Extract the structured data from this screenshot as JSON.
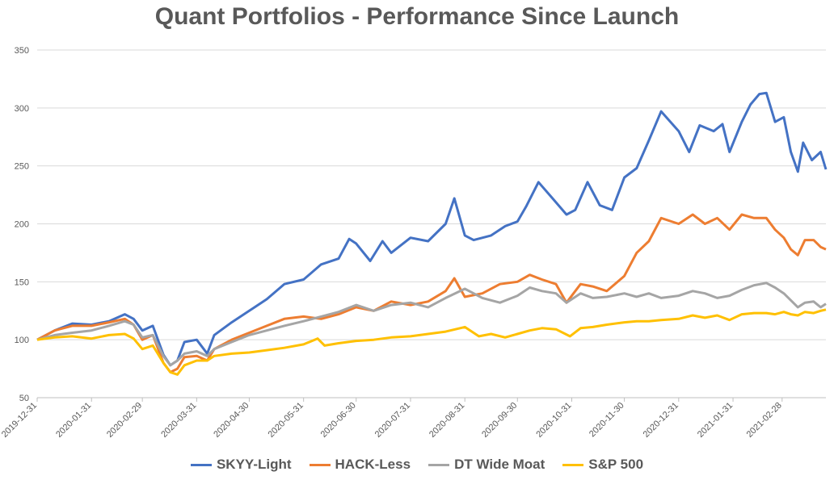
{
  "chart_data": {
    "type": "line",
    "title": "Quant Portfolios - Performance Since Launch",
    "ylim": [
      50,
      350
    ],
    "yticks": [
      50,
      100,
      150,
      200,
      250,
      300,
      350
    ],
    "grid": true,
    "legend_position": "bottom",
    "x_tick_labels": [
      "2019-12-31",
      "2020-01-31",
      "2020-02-29",
      "2020-03-31",
      "2020-04-30",
      "2020-05-31",
      "2020-06-30",
      "2020-07-31",
      "2020-08-31",
      "2020-09-30",
      "2020-10-31",
      "2020-11-30",
      "2020-12-31",
      "2021-01-31",
      "2021-02-28"
    ],
    "x_range": [
      "2019-12-31",
      "2021-03-25"
    ],
    "series": [
      {
        "name": "SKYY-Light",
        "color": "#4472c4",
        "points": [
          [
            "2019-12-31",
            100
          ],
          [
            "2020-01-10",
            108
          ],
          [
            "2020-01-20",
            114
          ],
          [
            "2020-01-31",
            113
          ],
          [
            "2020-02-10",
            116
          ],
          [
            "2020-02-19",
            122
          ],
          [
            "2020-02-24",
            118
          ],
          [
            "2020-02-29",
            108
          ],
          [
            "2020-03-06",
            112
          ],
          [
            "2020-03-12",
            87
          ],
          [
            "2020-03-16",
            78
          ],
          [
            "2020-03-20",
            82
          ],
          [
            "2020-03-24",
            98
          ],
          [
            "2020-03-31",
            100
          ],
          [
            "2020-04-06",
            88
          ],
          [
            "2020-04-10",
            104
          ],
          [
            "2020-04-20",
            115
          ],
          [
            "2020-04-30",
            125
          ],
          [
            "2020-05-10",
            135
          ],
          [
            "2020-05-20",
            148
          ],
          [
            "2020-05-31",
            152
          ],
          [
            "2020-06-10",
            165
          ],
          [
            "2020-06-20",
            170
          ],
          [
            "2020-06-26",
            187
          ],
          [
            "2020-06-30",
            183
          ],
          [
            "2020-07-08",
            168
          ],
          [
            "2020-07-15",
            185
          ],
          [
            "2020-07-20",
            175
          ],
          [
            "2020-07-31",
            188
          ],
          [
            "2020-08-10",
            185
          ],
          [
            "2020-08-20",
            200
          ],
          [
            "2020-08-25",
            222
          ],
          [
            "2020-08-31",
            190
          ],
          [
            "2020-09-05",
            186
          ],
          [
            "2020-09-15",
            190
          ],
          [
            "2020-09-23",
            198
          ],
          [
            "2020-09-30",
            202
          ],
          [
            "2020-10-05",
            215
          ],
          [
            "2020-10-12",
            236
          ],
          [
            "2020-10-20",
            222
          ],
          [
            "2020-10-28",
            208
          ],
          [
            "2020-11-02",
            212
          ],
          [
            "2020-11-09",
            236
          ],
          [
            "2020-11-16",
            216
          ],
          [
            "2020-11-23",
            212
          ],
          [
            "2020-11-30",
            240
          ],
          [
            "2020-12-07",
            248
          ],
          [
            "2020-12-14",
            272
          ],
          [
            "2020-12-21",
            297
          ],
          [
            "2020-12-31",
            280
          ],
          [
            "2021-01-06",
            262
          ],
          [
            "2021-01-12",
            285
          ],
          [
            "2021-01-20",
            280
          ],
          [
            "2021-01-25",
            286
          ],
          [
            "2021-01-29",
            262
          ],
          [
            "2021-02-05",
            288
          ],
          [
            "2021-02-10",
            303
          ],
          [
            "2021-02-15",
            312
          ],
          [
            "2021-02-19",
            313
          ],
          [
            "2021-02-24",
            288
          ],
          [
            "2021-03-01",
            292
          ],
          [
            "2021-03-05",
            262
          ],
          [
            "2021-03-09",
            245
          ],
          [
            "2021-03-12",
            270
          ],
          [
            "2021-03-17",
            255
          ],
          [
            "2021-03-22",
            262
          ],
          [
            "2021-03-25",
            247
          ]
        ]
      },
      {
        "name": "HACK-Less",
        "color": "#ed7d31",
        "points": [
          [
            "2019-12-31",
            100
          ],
          [
            "2020-01-10",
            108
          ],
          [
            "2020-01-20",
            112
          ],
          [
            "2020-01-31",
            112
          ],
          [
            "2020-02-10",
            115
          ],
          [
            "2020-02-19",
            118
          ],
          [
            "2020-02-24",
            113
          ],
          [
            "2020-02-29",
            100
          ],
          [
            "2020-03-06",
            104
          ],
          [
            "2020-03-12",
            80
          ],
          [
            "2020-03-16",
            72
          ],
          [
            "2020-03-20",
            75
          ],
          [
            "2020-03-24",
            85
          ],
          [
            "2020-03-31",
            86
          ],
          [
            "2020-04-06",
            82
          ],
          [
            "2020-04-10",
            92
          ],
          [
            "2020-04-20",
            100
          ],
          [
            "2020-04-30",
            106
          ],
          [
            "2020-05-10",
            112
          ],
          [
            "2020-05-20",
            118
          ],
          [
            "2020-05-31",
            120
          ],
          [
            "2020-06-10",
            118
          ],
          [
            "2020-06-20",
            122
          ],
          [
            "2020-06-30",
            128
          ],
          [
            "2020-07-10",
            125
          ],
          [
            "2020-07-20",
            133
          ],
          [
            "2020-07-31",
            130
          ],
          [
            "2020-08-10",
            133
          ],
          [
            "2020-08-20",
            142
          ],
          [
            "2020-08-25",
            153
          ],
          [
            "2020-08-31",
            137
          ],
          [
            "2020-09-10",
            140
          ],
          [
            "2020-09-20",
            148
          ],
          [
            "2020-09-30",
            150
          ],
          [
            "2020-10-07",
            156
          ],
          [
            "2020-10-14",
            152
          ],
          [
            "2020-10-22",
            148
          ],
          [
            "2020-10-28",
            132
          ],
          [
            "2020-11-05",
            148
          ],
          [
            "2020-11-12",
            146
          ],
          [
            "2020-11-20",
            142
          ],
          [
            "2020-11-30",
            155
          ],
          [
            "2020-12-07",
            175
          ],
          [
            "2020-12-14",
            185
          ],
          [
            "2020-12-21",
            205
          ],
          [
            "2020-12-31",
            200
          ],
          [
            "2021-01-08",
            208
          ],
          [
            "2021-01-15",
            200
          ],
          [
            "2021-01-22",
            205
          ],
          [
            "2021-01-29",
            195
          ],
          [
            "2021-02-05",
            208
          ],
          [
            "2021-02-12",
            205
          ],
          [
            "2021-02-19",
            205
          ],
          [
            "2021-02-24",
            195
          ],
          [
            "2021-03-01",
            188
          ],
          [
            "2021-03-05",
            178
          ],
          [
            "2021-03-09",
            173
          ],
          [
            "2021-03-13",
            186
          ],
          [
            "2021-03-18",
            186
          ],
          [
            "2021-03-22",
            180
          ],
          [
            "2021-03-25",
            178
          ]
        ]
      },
      {
        "name": "DT Wide Moat",
        "color": "#a5a5a5",
        "points": [
          [
            "2019-12-31",
            100
          ],
          [
            "2020-01-10",
            104
          ],
          [
            "2020-01-20",
            106
          ],
          [
            "2020-01-31",
            108
          ],
          [
            "2020-02-10",
            112
          ],
          [
            "2020-02-19",
            116
          ],
          [
            "2020-02-24",
            113
          ],
          [
            "2020-02-29",
            102
          ],
          [
            "2020-03-06",
            104
          ],
          [
            "2020-03-12",
            86
          ],
          [
            "2020-03-16",
            78
          ],
          [
            "2020-03-20",
            82
          ],
          [
            "2020-03-24",
            88
          ],
          [
            "2020-03-31",
            90
          ],
          [
            "2020-04-06",
            86
          ],
          [
            "2020-04-10",
            92
          ],
          [
            "2020-04-20",
            98
          ],
          [
            "2020-04-30",
            104
          ],
          [
            "2020-05-10",
            108
          ],
          [
            "2020-05-20",
            112
          ],
          [
            "2020-05-31",
            116
          ],
          [
            "2020-06-10",
            120
          ],
          [
            "2020-06-20",
            124
          ],
          [
            "2020-06-30",
            130
          ],
          [
            "2020-07-10",
            125
          ],
          [
            "2020-07-20",
            130
          ],
          [
            "2020-07-31",
            132
          ],
          [
            "2020-08-10",
            128
          ],
          [
            "2020-08-20",
            136
          ],
          [
            "2020-08-31",
            144
          ],
          [
            "2020-09-10",
            136
          ],
          [
            "2020-09-20",
            132
          ],
          [
            "2020-09-30",
            138
          ],
          [
            "2020-10-07",
            145
          ],
          [
            "2020-10-14",
            142
          ],
          [
            "2020-10-22",
            140
          ],
          [
            "2020-10-28",
            132
          ],
          [
            "2020-11-05",
            140
          ],
          [
            "2020-11-12",
            136
          ],
          [
            "2020-11-20",
            137
          ],
          [
            "2020-11-30",
            140
          ],
          [
            "2020-12-07",
            137
          ],
          [
            "2020-12-14",
            140
          ],
          [
            "2020-12-21",
            136
          ],
          [
            "2020-12-31",
            138
          ],
          [
            "2021-01-08",
            142
          ],
          [
            "2021-01-15",
            140
          ],
          [
            "2021-01-22",
            136
          ],
          [
            "2021-01-29",
            138
          ],
          [
            "2021-02-05",
            143
          ],
          [
            "2021-02-12",
            147
          ],
          [
            "2021-02-19",
            149
          ],
          [
            "2021-02-24",
            145
          ],
          [
            "2021-03-01",
            140
          ],
          [
            "2021-03-05",
            134
          ],
          [
            "2021-03-09",
            128
          ],
          [
            "2021-03-13",
            132
          ],
          [
            "2021-03-18",
            133
          ],
          [
            "2021-03-22",
            128
          ],
          [
            "2021-03-25",
            131
          ]
        ]
      },
      {
        "name": "S&P 500",
        "color": "#ffc000",
        "points": [
          [
            "2019-12-31",
            100
          ],
          [
            "2020-01-10",
            102
          ],
          [
            "2020-01-20",
            103
          ],
          [
            "2020-01-31",
            101
          ],
          [
            "2020-02-10",
            104
          ],
          [
            "2020-02-19",
            105
          ],
          [
            "2020-02-24",
            101
          ],
          [
            "2020-02-29",
            92
          ],
          [
            "2020-03-06",
            95
          ],
          [
            "2020-03-12",
            80
          ],
          [
            "2020-03-16",
            72
          ],
          [
            "2020-03-20",
            70
          ],
          [
            "2020-03-24",
            78
          ],
          [
            "2020-03-31",
            82
          ],
          [
            "2020-04-06",
            82
          ],
          [
            "2020-04-10",
            86
          ],
          [
            "2020-04-20",
            88
          ],
          [
            "2020-04-30",
            89
          ],
          [
            "2020-05-10",
            91
          ],
          [
            "2020-05-20",
            93
          ],
          [
            "2020-05-31",
            96
          ],
          [
            "2020-06-08",
            101
          ],
          [
            "2020-06-12",
            95
          ],
          [
            "2020-06-20",
            97
          ],
          [
            "2020-06-30",
            99
          ],
          [
            "2020-07-10",
            100
          ],
          [
            "2020-07-20",
            102
          ],
          [
            "2020-07-31",
            103
          ],
          [
            "2020-08-10",
            105
          ],
          [
            "2020-08-20",
            107
          ],
          [
            "2020-08-31",
            111
          ],
          [
            "2020-09-08",
            103
          ],
          [
            "2020-09-15",
            105
          ],
          [
            "2020-09-23",
            102
          ],
          [
            "2020-09-30",
            105
          ],
          [
            "2020-10-07",
            108
          ],
          [
            "2020-10-14",
            110
          ],
          [
            "2020-10-22",
            109
          ],
          [
            "2020-10-30",
            103
          ],
          [
            "2020-11-05",
            110
          ],
          [
            "2020-11-12",
            111
          ],
          [
            "2020-11-20",
            113
          ],
          [
            "2020-11-30",
            115
          ],
          [
            "2020-12-07",
            116
          ],
          [
            "2020-12-14",
            116
          ],
          [
            "2020-12-21",
            117
          ],
          [
            "2020-12-31",
            118
          ],
          [
            "2021-01-08",
            121
          ],
          [
            "2021-01-15",
            119
          ],
          [
            "2021-01-22",
            121
          ],
          [
            "2021-01-29",
            117
          ],
          [
            "2021-02-05",
            122
          ],
          [
            "2021-02-12",
            123
          ],
          [
            "2021-02-19",
            123
          ],
          [
            "2021-02-24",
            122
          ],
          [
            "2021-03-01",
            124
          ],
          [
            "2021-03-05",
            122
          ],
          [
            "2021-03-09",
            121
          ],
          [
            "2021-03-13",
            124
          ],
          [
            "2021-03-18",
            123
          ],
          [
            "2021-03-22",
            125
          ],
          [
            "2021-03-25",
            126
          ]
        ]
      }
    ]
  }
}
